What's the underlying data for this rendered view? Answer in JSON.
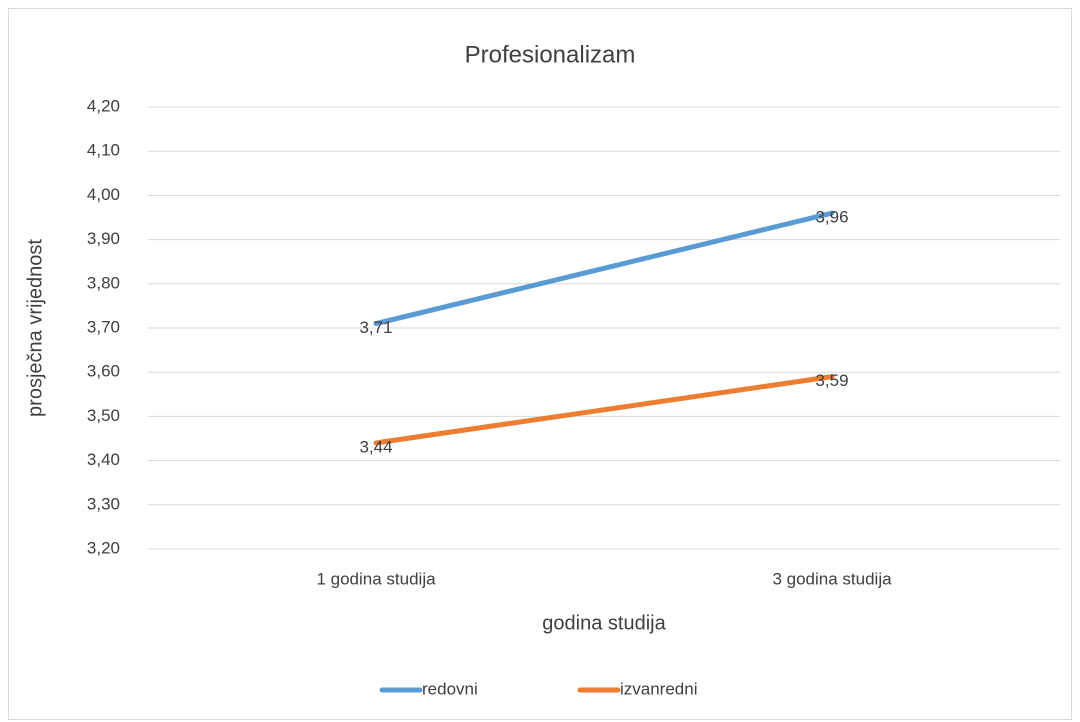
{
  "chart_data": {
    "type": "line",
    "title": "Profesionalizam",
    "x_label": "godina studija",
    "y_label": "prosječna vrijednost",
    "categories": [
      "1 godina studija",
      "3 godina studija"
    ],
    "series": [
      {
        "name": "redovni",
        "color": "#5b9bd5",
        "values": [
          3.71,
          3.96
        ],
        "value_labels": [
          "3,71",
          "3,96"
        ]
      },
      {
        "name": "izvanredni",
        "color": "#ed7d31",
        "values": [
          3.44,
          3.59
        ],
        "value_labels": [
          "3,44",
          "3,59"
        ]
      }
    ],
    "ylim": [
      3.2,
      4.2
    ],
    "yticks": [
      {
        "value": 3.2,
        "label": "3,20"
      },
      {
        "value": 3.3,
        "label": "3,30"
      },
      {
        "value": 3.4,
        "label": "3,40"
      },
      {
        "value": 3.5,
        "label": "3,50"
      },
      {
        "value": 3.6,
        "label": "3,60"
      },
      {
        "value": 3.7,
        "label": "3,70"
      },
      {
        "value": 3.8,
        "label": "3,80"
      },
      {
        "value": 3.9,
        "label": "3,90"
      },
      {
        "value": 4.0,
        "label": "4,00"
      },
      {
        "value": 4.1,
        "label": "4,10"
      },
      {
        "value": 4.2,
        "label": "4,20"
      }
    ],
    "grid": true,
    "legend": "bottom"
  }
}
